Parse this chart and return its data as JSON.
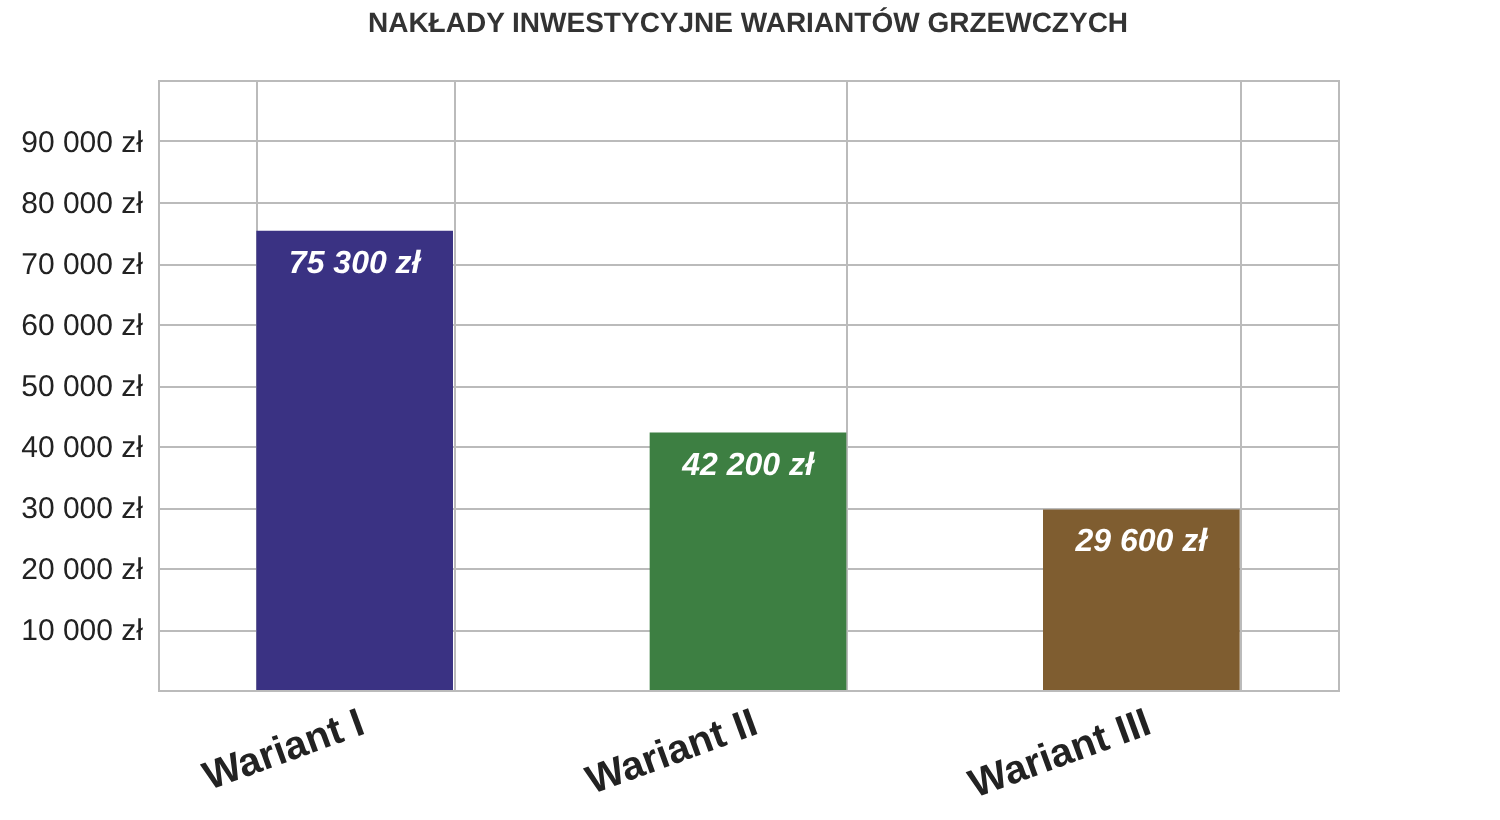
{
  "chart_data": {
    "type": "bar",
    "title": "NAKŁADY INWESTYCYJNE WARIANTÓW GRZEWCZYCH",
    "categories": [
      "Wariant I",
      "Wariant II",
      "Wariant III"
    ],
    "values": [
      75300,
      42200,
      29600
    ],
    "colors": [
      "#3a3283",
      "#3d7f42",
      "#7f5d30"
    ],
    "value_labels": [
      "75 300 zł",
      "42 200 zł",
      "29 600 zł"
    ],
    "ylim": [
      0,
      100000
    ],
    "yticks": [
      {
        "value": 0,
        "label": null
      },
      {
        "value": 10000,
        "label": "10 000 zł"
      },
      {
        "value": 20000,
        "label": "20 000 zł"
      },
      {
        "value": 30000,
        "label": "30 000 zł"
      },
      {
        "value": 40000,
        "label": "40 000 zł"
      },
      {
        "value": 50000,
        "label": "50 000 zł"
      },
      {
        "value": 60000,
        "label": "60 000 zł"
      },
      {
        "value": 70000,
        "label": "70 000 zł"
      },
      {
        "value": 80000,
        "label": "80 000 zł"
      },
      {
        "value": 90000,
        "label": "90 000 zł"
      },
      {
        "value": 100000,
        "label": null
      }
    ],
    "grid": true
  }
}
